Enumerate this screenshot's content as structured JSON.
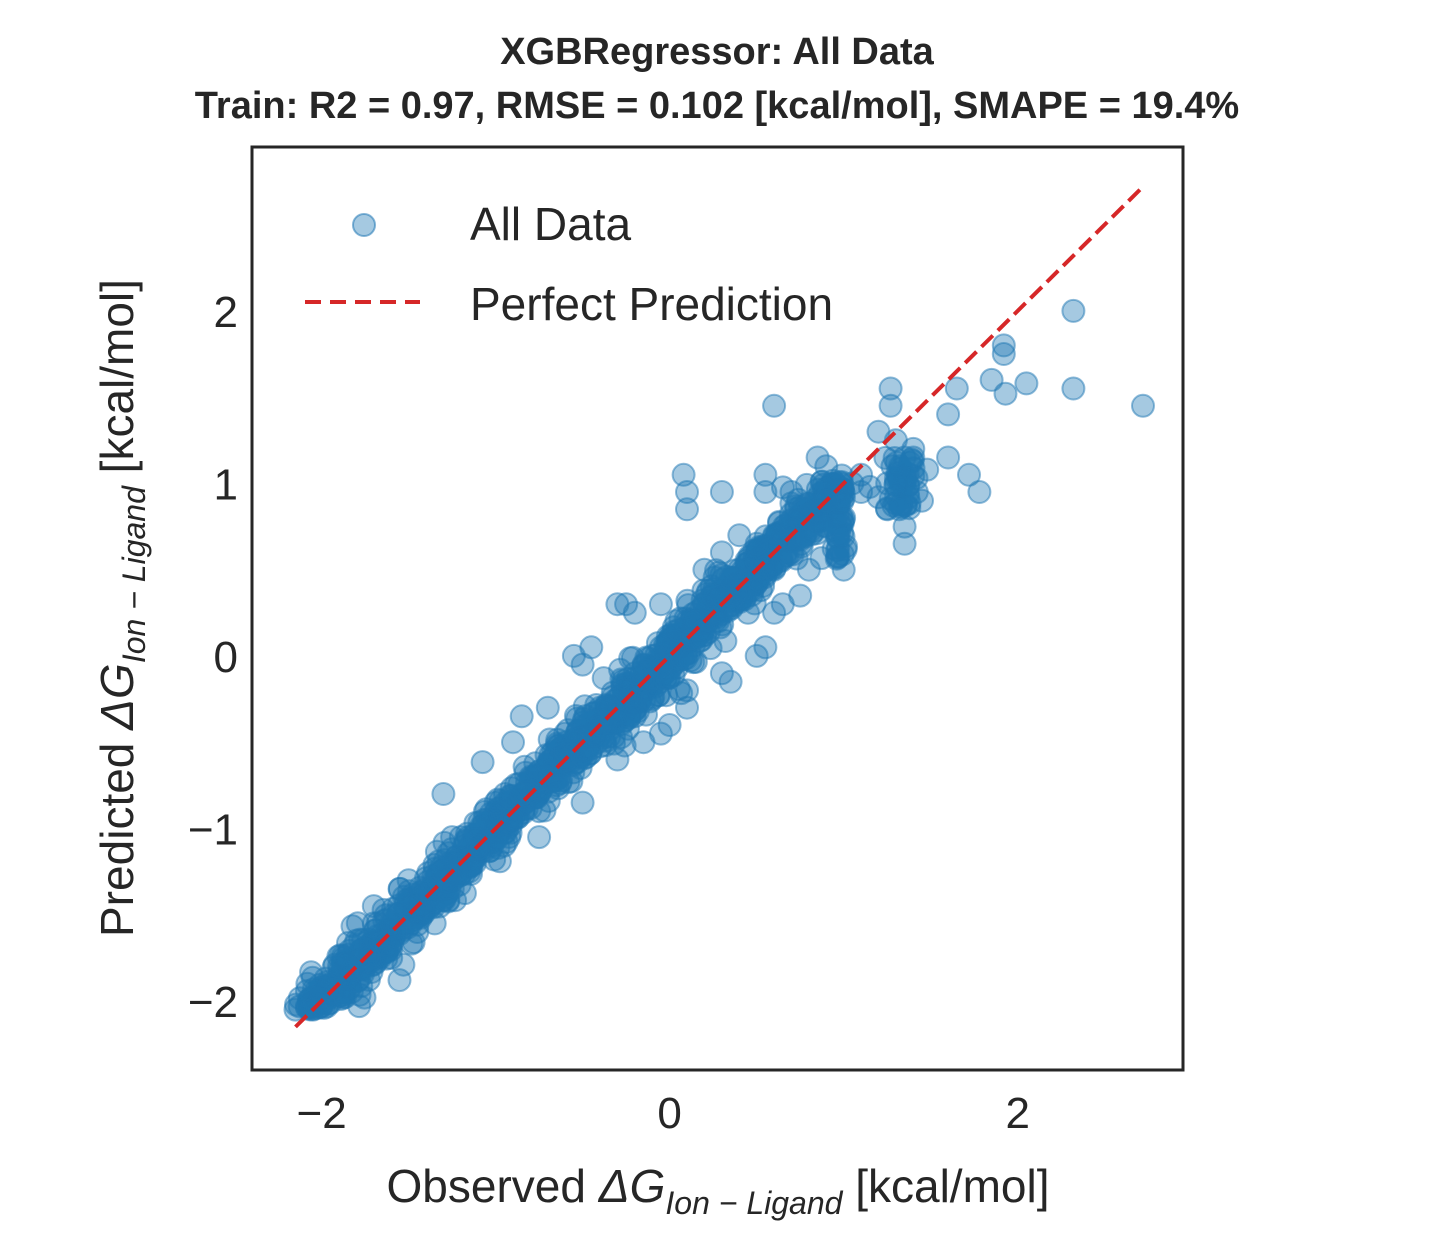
{
  "chart_data": {
    "type": "scatter",
    "title": "XGBRegressor: All Data",
    "subtitle": "Train: R2 = 0.97, RMSE = 0.102 [kcal/mol], SMAPE = 19.4%",
    "xlabel": {
      "prefix": "Observed ",
      "symbol": "ΔG",
      "subscript": "Ion − Ligand",
      "suffix": " [kcal/mol]"
    },
    "ylabel": {
      "prefix": "Predicted ",
      "symbol": "ΔG",
      "subscript": "Ion − Ligand",
      "suffix": " [kcal/mol]"
    },
    "xlim": [
      -2.4,
      2.95
    ],
    "ylim": [
      -2.4,
      2.95
    ],
    "xticks": [
      {
        "value": -2,
        "label": "−2"
      },
      {
        "value": 0,
        "label": "0"
      },
      {
        "value": 2,
        "label": "2"
      }
    ],
    "yticks": [
      {
        "value": -2,
        "label": "−2"
      },
      {
        "value": -1,
        "label": "−1"
      },
      {
        "value": 0,
        "label": "0"
      },
      {
        "value": 1,
        "label": "1"
      },
      {
        "value": 2,
        "label": "2"
      }
    ],
    "grid": false,
    "legend_position": "top-left",
    "series": [
      {
        "name": "All Data",
        "kind": "scatter",
        "color": "#1f77b4",
        "x_range": [
          -2.15,
          2.72
        ],
        "y_range": [
          -2.05,
          2.0
        ],
        "points": [
          [
            -2.15,
            -2.05
          ],
          [
            -2.05,
            -2.05
          ],
          [
            -1.95,
            -1.9
          ],
          [
            -1.85,
            -1.78
          ],
          [
            -1.8,
            -1.65
          ],
          [
            -1.75,
            -1.7
          ],
          [
            -1.7,
            -1.55
          ],
          [
            -1.6,
            -1.55
          ],
          [
            -1.5,
            -1.45
          ],
          [
            -1.55,
            -1.35
          ],
          [
            -1.4,
            -1.35
          ],
          [
            -1.3,
            -1.25
          ],
          [
            -1.25,
            -1.3
          ],
          [
            -1.2,
            -1.05
          ],
          [
            -1.1,
            -1.1
          ],
          [
            -1.05,
            -0.95
          ],
          [
            -1.3,
            -0.8
          ],
          [
            -1.0,
            -0.85
          ],
          [
            -0.9,
            -0.95
          ],
          [
            -0.85,
            -0.8
          ],
          [
            -0.8,
            -0.7
          ],
          [
            -0.75,
            -0.9
          ],
          [
            -0.7,
            -0.62
          ],
          [
            -0.6,
            -0.55
          ],
          [
            -0.55,
            -0.5
          ],
          [
            -0.5,
            -0.58
          ],
          [
            -0.45,
            -0.38
          ],
          [
            -0.4,
            -0.4
          ],
          [
            -0.35,
            -0.3
          ],
          [
            -0.3,
            -0.25
          ],
          [
            -0.25,
            -0.2
          ],
          [
            -0.2,
            -0.1
          ],
          [
            -0.15,
            -0.05
          ],
          [
            -0.1,
            0.0
          ],
          [
            -0.05,
            0.05
          ],
          [
            0.0,
            0.1
          ],
          [
            0.05,
            0.15
          ],
          [
            0.1,
            0.2
          ],
          [
            0.15,
            0.2
          ],
          [
            0.2,
            0.3
          ],
          [
            0.25,
            0.35
          ],
          [
            0.3,
            0.35
          ],
          [
            0.35,
            0.45
          ],
          [
            0.4,
            0.5
          ],
          [
            0.45,
            0.5
          ],
          [
            0.5,
            0.55
          ],
          [
            0.55,
            0.6
          ],
          [
            0.6,
            0.7
          ],
          [
            0.65,
            0.72
          ],
          [
            0.7,
            0.78
          ],
          [
            0.75,
            0.8
          ],
          [
            0.8,
            0.88
          ],
          [
            0.85,
            0.9
          ],
          [
            0.9,
            0.95
          ],
          [
            0.95,
            1.0
          ],
          [
            -0.55,
            0.0
          ],
          [
            -0.5,
            -0.05
          ],
          [
            -0.45,
            0.05
          ],
          [
            -0.3,
            0.3
          ],
          [
            -0.25,
            0.3
          ],
          [
            -0.2,
            0.25
          ],
          [
            0.0,
            -0.4
          ],
          [
            0.1,
            -0.3
          ],
          [
            0.3,
            -0.1
          ],
          [
            0.35,
            -0.15
          ],
          [
            0.5,
            0.0
          ],
          [
            0.55,
            0.05
          ],
          [
            0.6,
            0.25
          ],
          [
            -0.9,
            -0.5
          ],
          [
            -0.7,
            -0.3
          ],
          [
            -0.85,
            -0.35
          ],
          [
            -1.35,
            -1.55
          ],
          [
            -1.45,
            -1.6
          ],
          [
            -1.6,
            -1.75
          ],
          [
            -0.75,
            -1.05
          ],
          [
            -0.5,
            -0.85
          ],
          [
            -0.3,
            -0.6
          ],
          [
            -0.15,
            -0.5
          ],
          [
            -0.05,
            -0.45
          ],
          [
            0.7,
            0.6
          ],
          [
            0.8,
            0.5
          ],
          [
            0.9,
            0.75
          ],
          [
            1.0,
            0.5
          ],
          [
            1.05,
            1.0
          ],
          [
            1.1,
            0.95
          ],
          [
            1.15,
            0.98
          ],
          [
            1.2,
            0.92
          ],
          [
            1.25,
            1.0
          ],
          [
            1.28,
            1.1
          ],
          [
            1.3,
            1.0
          ],
          [
            1.32,
            0.85
          ],
          [
            1.35,
            0.75
          ],
          [
            1.38,
            1.12
          ],
          [
            1.4,
            1.15
          ],
          [
            1.42,
            0.95
          ],
          [
            1.45,
            0.9
          ],
          [
            1.48,
            1.08
          ],
          [
            1.35,
            0.65
          ],
          [
            1.2,
            1.3
          ],
          [
            1.3,
            1.25
          ],
          [
            1.35,
            1.15
          ],
          [
            1.4,
            1.2
          ],
          [
            1.25,
            0.85
          ],
          [
            1.1,
            1.05
          ],
          [
            0.08,
            1.05
          ],
          [
            0.1,
            0.95
          ],
          [
            0.1,
            0.85
          ],
          [
            0.3,
            0.95
          ],
          [
            0.55,
            1.05
          ],
          [
            0.55,
            0.95
          ],
          [
            0.7,
            0.95
          ],
          [
            0.85,
            1.15
          ],
          [
            0.9,
            1.1
          ],
          [
            0.9,
            0.9
          ],
          [
            0.6,
            1.45
          ],
          [
            1.27,
            1.45
          ],
          [
            1.27,
            1.55
          ],
          [
            1.6,
            1.4
          ],
          [
            1.65,
            1.55
          ],
          [
            1.72,
            1.05
          ],
          [
            1.78,
            0.95
          ],
          [
            1.85,
            1.6
          ],
          [
            1.92,
            1.8
          ],
          [
            1.93,
            1.52
          ],
          [
            1.92,
            1.75
          ],
          [
            2.05,
            1.58
          ],
          [
            2.32,
            1.55
          ],
          [
            2.32,
            2.0
          ],
          [
            2.72,
            1.45
          ],
          [
            1.6,
            1.15
          ],
          [
            0.3,
            0.6
          ],
          [
            0.4,
            0.7
          ],
          [
            0.2,
            0.5
          ],
          [
            0.6,
            0.5
          ],
          [
            0.65,
            0.3
          ],
          [
            0.75,
            0.35
          ],
          [
            0.1,
            -0.2
          ],
          [
            -0.1,
            -0.25
          ],
          [
            -0.2,
            -0.35
          ],
          [
            -0.6,
            -0.45
          ],
          [
            -0.65,
            -0.75
          ],
          [
            -0.95,
            -1.1
          ],
          [
            -1.15,
            -1.25
          ],
          [
            -1.25,
            -1.05
          ],
          [
            -1.5,
            -1.3
          ],
          [
            -1.7,
            -1.45
          ],
          [
            -1.9,
            -1.8
          ],
          [
            -2.0,
            -1.95
          ],
          [
            0.45,
            0.25
          ],
          [
            0.5,
            0.65
          ],
          [
            0.2,
            0.15
          ],
          [
            -0.05,
            0.3
          ]
        ]
      },
      {
        "name": "Perfect Prediction",
        "kind": "line",
        "style": "dashed",
        "color": "#d62728",
        "x": [
          -2.15,
          2.72
        ],
        "y": [
          -2.15,
          2.72
        ]
      }
    ]
  }
}
